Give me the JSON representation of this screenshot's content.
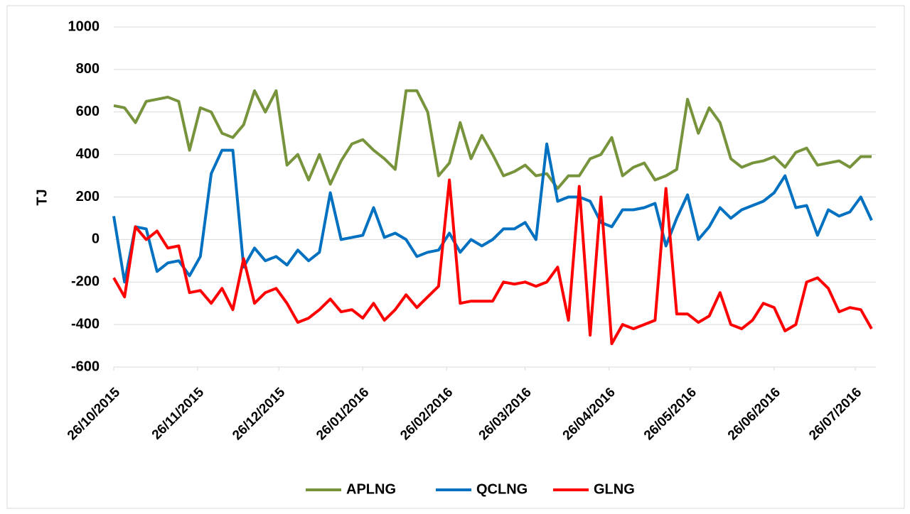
{
  "chart_data": {
    "type": "line",
    "y_label": "TJ",
    "x": [
      "26/10/2015",
      "30/10/2015",
      "03/11/2015",
      "07/11/2015",
      "11/11/2015",
      "15/11/2015",
      "19/11/2015",
      "23/11/2015",
      "27/11/2015",
      "01/12/2015",
      "05/12/2015",
      "09/12/2015",
      "13/12/2015",
      "17/12/2015",
      "21/12/2015",
      "25/12/2015",
      "29/12/2015",
      "02/01/2016",
      "06/01/2016",
      "10/01/2016",
      "14/01/2016",
      "18/01/2016",
      "22/01/2016",
      "26/01/2016",
      "30/01/2016",
      "03/02/2016",
      "07/02/2016",
      "11/02/2016",
      "15/02/2016",
      "19/02/2016",
      "23/02/2016",
      "27/02/2016",
      "02/03/2016",
      "06/03/2016",
      "10/03/2016",
      "14/03/2016",
      "18/03/2016",
      "22/03/2016",
      "26/03/2016",
      "30/03/2016",
      "03/04/2016",
      "07/04/2016",
      "11/04/2016",
      "15/04/2016",
      "19/04/2016",
      "23/04/2016",
      "27/04/2016",
      "01/05/2016",
      "05/05/2016",
      "09/05/2016",
      "13/05/2016",
      "17/05/2016",
      "21/05/2016",
      "25/05/2016",
      "29/05/2016",
      "02/06/2016",
      "06/06/2016",
      "10/06/2016",
      "14/06/2016",
      "18/06/2016",
      "22/06/2016",
      "26/06/2016",
      "30/06/2016",
      "04/07/2016",
      "08/07/2016",
      "12/07/2016",
      "16/07/2016",
      "20/07/2016",
      "24/07/2016",
      "28/07/2016",
      "01/08/2016"
    ],
    "series": [
      {
        "name": "APLNG",
        "color": "#77933c",
        "values": [
          630,
          620,
          550,
          650,
          660,
          670,
          650,
          420,
          620,
          600,
          500,
          480,
          540,
          700,
          600,
          700,
          350,
          400,
          280,
          400,
          260,
          370,
          450,
          470,
          420,
          380,
          330,
          700,
          700,
          600,
          300,
          360,
          550,
          380,
          490,
          400,
          300,
          320,
          350,
          300,
          310,
          240,
          300,
          300,
          380,
          400,
          480,
          300,
          340,
          360,
          280,
          300,
          330,
          660,
          500,
          620,
          550,
          380,
          340,
          360,
          370,
          390,
          340,
          410,
          430,
          350,
          360,
          370,
          340,
          390,
          390
        ]
      },
      {
        "name": "QCLNG",
        "color": "#0070c0",
        "values": [
          110,
          -200,
          60,
          50,
          -150,
          -110,
          -100,
          -170,
          -80,
          310,
          420,
          420,
          -130,
          -40,
          -100,
          -80,
          -120,
          -50,
          -100,
          -60,
          220,
          0,
          10,
          20,
          150,
          10,
          30,
          0,
          -80,
          -60,
          -50,
          30,
          -60,
          0,
          -30,
          0,
          50,
          50,
          80,
          0,
          450,
          180,
          200,
          200,
          180,
          80,
          60,
          140,
          140,
          150,
          170,
          -30,
          100,
          210,
          0,
          60,
          150,
          100,
          140,
          160,
          180,
          220,
          300,
          150,
          160,
          20,
          140,
          110,
          130,
          200,
          90
        ]
      },
      {
        "name": "GLNG",
        "color": "#ff0000",
        "values": [
          -180,
          -270,
          60,
          0,
          40,
          -40,
          -30,
          -250,
          -240,
          -300,
          -230,
          -330,
          -90,
          -300,
          -250,
          -230,
          -300,
          -390,
          -370,
          -330,
          -280,
          -340,
          -330,
          -370,
          -300,
          -380,
          -330,
          -260,
          -320,
          -270,
          -220,
          280,
          -300,
          -290,
          -290,
          -290,
          -200,
          -210,
          -200,
          -220,
          -200,
          -130,
          -380,
          250,
          -450,
          200,
          -490,
          -400,
          -420,
          -400,
          -380,
          240,
          -350,
          -350,
          -390,
          -360,
          -250,
          -400,
          -420,
          -380,
          -300,
          -320,
          -430,
          -400,
          -200,
          -180,
          -230,
          -340,
          -320,
          -330,
          -420
        ]
      }
    ],
    "xlim": [
      "26/10/2015",
      "01/08/2016"
    ],
    "xticks": [
      "26/10/2015",
      "26/11/2015",
      "26/12/2015",
      "26/01/2016",
      "26/02/2016",
      "26/03/2016",
      "26/04/2016",
      "26/05/2016",
      "26/06/2016",
      "26/07/2016"
    ],
    "ylim": [
      -600,
      1000
    ],
    "yticks": [
      -600,
      -400,
      -200,
      0,
      200,
      400,
      600,
      800,
      1000
    ],
    "grid": true,
    "legend": "bottom"
  }
}
